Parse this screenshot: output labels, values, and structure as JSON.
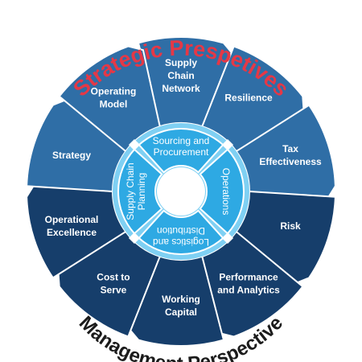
{
  "diagram": {
    "top_title": "Strategic Prespetives",
    "bottom_title": "Management Perspective",
    "outer_segments": [
      {
        "lines": [
          "Supply",
          "Chain",
          "Network"
        ]
      },
      {
        "lines": [
          "Resilience"
        ]
      },
      {
        "lines": [
          "Tax",
          "Effectiveness"
        ]
      },
      {
        "lines": [
          "Risk"
        ]
      },
      {
        "lines": [
          "Performance",
          "and Analytics"
        ]
      },
      {
        "lines": [
          "Working",
          "Capital"
        ]
      },
      {
        "lines": [
          "Cost to",
          "Serve"
        ]
      },
      {
        "lines": [
          "Operational",
          "Excellence"
        ]
      },
      {
        "lines": [
          "Strategy"
        ]
      },
      {
        "lines": [
          "Operating",
          "Model"
        ]
      }
    ],
    "inner_segments": [
      {
        "lines": [
          "Sourcing and",
          "Procurement"
        ]
      },
      {
        "lines": [
          "Operations"
        ]
      },
      {
        "lines": [
          "Logistics and",
          "Distribution"
        ]
      },
      {
        "lines": [
          "Supply Chain",
          "Planning"
        ]
      }
    ],
    "colors": {
      "title_red": "#e53846",
      "title_dark": "#1b1b1b",
      "outer_light": "#2f6ea6",
      "outer_dark": "#163e6b",
      "inner_blue": "#2ea9e3",
      "inner_ring": "#7fd0f3",
      "center": "#ffffff"
    }
  }
}
